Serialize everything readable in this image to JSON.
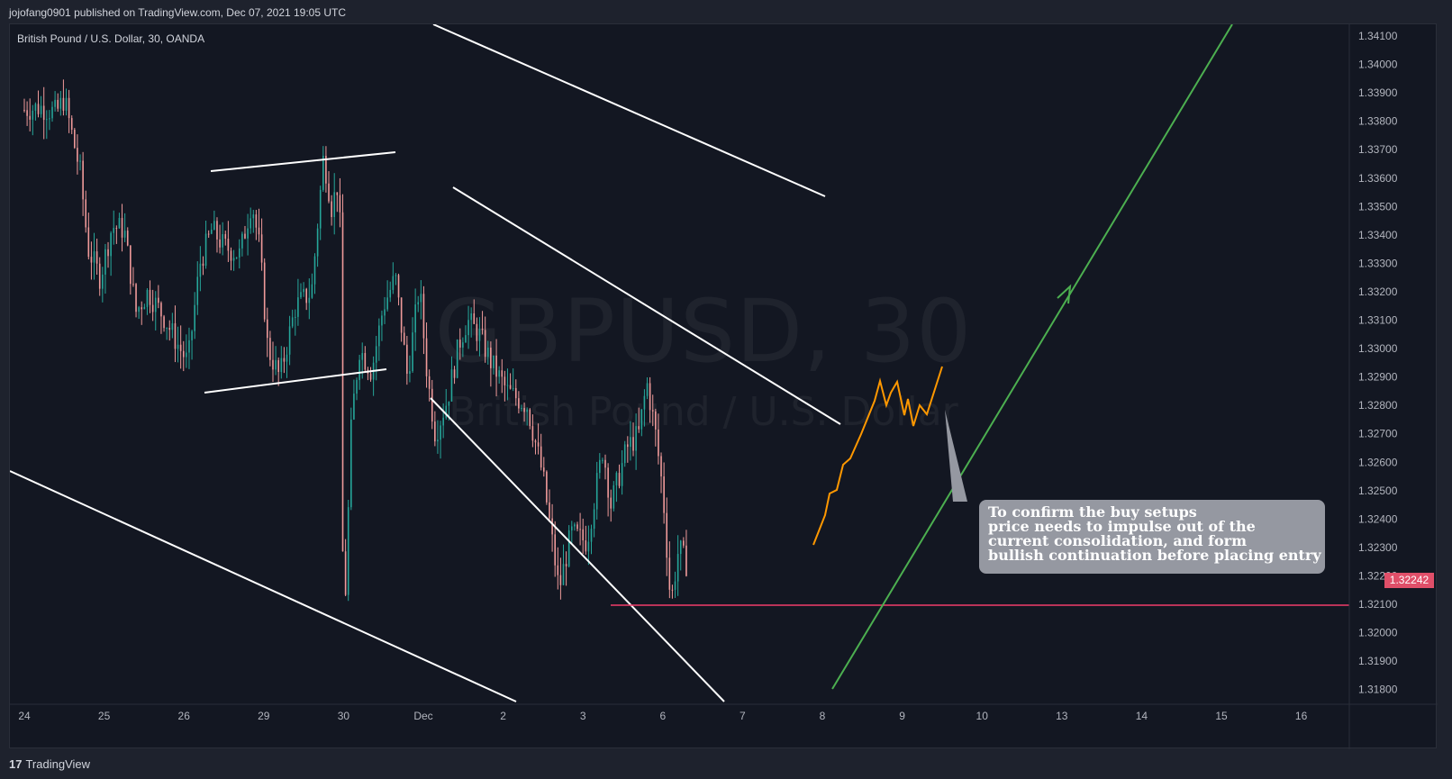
{
  "header": {
    "publisher": "jojofang0901 published on TradingView.com, Dec 07, 2021 19:05 UTC"
  },
  "symbol": {
    "label": "British Pound / U.S. Dollar, 30, OANDA",
    "watermark": "GBPUSD, 30",
    "watermark_desc": "British Pound / U.S. Dollar"
  },
  "note": {
    "lines": [
      "To confirm the buy setups",
      "price needs to impulse out of the",
      "current consolidation, and form",
      "bullish continuation before placing entry"
    ]
  },
  "price_tag": "1.32242",
  "footer": {
    "logo_text": "TradingView",
    "logo_mark": "17"
  },
  "colors": {
    "background": "#131722",
    "bull": "#26a69a",
    "bear": "#ef9a9a",
    "trendline": "#ffffff",
    "support": "#f23d6b",
    "projection": "#ff9800",
    "target_arrow": "#4caf50",
    "price_tag": "#e04f69"
  },
  "chart_data": {
    "type": "candlestick",
    "title": "British Pound / U.S. Dollar, 30, OANDA",
    "x_ticks": [
      "24",
      "25",
      "26",
      "29",
      "30",
      "Dec",
      "2",
      "3",
      "6",
      "7",
      "8",
      "9",
      "10",
      "13",
      "14",
      "15",
      "16"
    ],
    "y_ticks": [
      "1.34100",
      "1.34000",
      "1.33900",
      "1.33800",
      "1.33700",
      "1.33600",
      "1.33500",
      "1.33400",
      "1.33300",
      "1.33200",
      "1.33100",
      "1.33000",
      "1.32900",
      "1.32800",
      "1.32700",
      "1.32600",
      "1.32500",
      "1.32400",
      "1.32300",
      "1.32200",
      "1.32100",
      "1.32000",
      "1.31900",
      "1.31800"
    ],
    "ylim": [
      1.3175,
      1.3413
    ],
    "last_price": 1.32242,
    "support_level": 1.321,
    "price_path": [
      {
        "x": 0.0,
        "y": 1.3384
      },
      {
        "x": 0.2,
        "y": 1.3385
      },
      {
        "x": 0.4,
        "y": 1.3383
      },
      {
        "x": 0.5,
        "y": 1.3388
      },
      {
        "x": 0.7,
        "y": 1.3362
      },
      {
        "x": 0.8,
        "y": 1.3335
      },
      {
        "x": 0.95,
        "y": 1.3325
      },
      {
        "x": 1.1,
        "y": 1.3343
      },
      {
        "x": 1.25,
        "y": 1.3342
      },
      {
        "x": 1.4,
        "y": 1.3313
      },
      {
        "x": 1.55,
        "y": 1.332
      },
      {
        "x": 1.75,
        "y": 1.3311
      },
      {
        "x": 1.95,
        "y": 1.33
      },
      {
        "x": 2.05,
        "y": 1.3295
      },
      {
        "x": 2.2,
        "y": 1.333
      },
      {
        "x": 2.35,
        "y": 1.3342
      },
      {
        "x": 2.5,
        "y": 1.3336
      },
      {
        "x": 2.7,
        "y": 1.3333
      },
      {
        "x": 2.85,
        "y": 1.3352
      },
      {
        "x": 2.95,
        "y": 1.3335
      },
      {
        "x": 3.05,
        "y": 1.33
      },
      {
        "x": 3.2,
        "y": 1.329
      },
      {
        "x": 3.4,
        "y": 1.3315
      },
      {
        "x": 3.6,
        "y": 1.332
      },
      {
        "x": 3.75,
        "y": 1.3368
      },
      {
        "x": 3.85,
        "y": 1.335
      },
      {
        "x": 3.95,
        "y": 1.336
      },
      {
        "x": 4.0,
        "y": 1.3195
      },
      {
        "x": 4.1,
        "y": 1.3275
      },
      {
        "x": 4.2,
        "y": 1.33
      },
      {
        "x": 4.35,
        "y": 1.3292
      },
      {
        "x": 4.5,
        "y": 1.3315
      },
      {
        "x": 4.65,
        "y": 1.3325
      },
      {
        "x": 4.8,
        "y": 1.329
      },
      {
        "x": 4.95,
        "y": 1.3322
      },
      {
        "x": 5.05,
        "y": 1.329
      },
      {
        "x": 5.15,
        "y": 1.327
      },
      {
        "x": 5.3,
        "y": 1.3282
      },
      {
        "x": 5.45,
        "y": 1.3302
      },
      {
        "x": 5.55,
        "y": 1.331
      },
      {
        "x": 5.7,
        "y": 1.3305
      },
      {
        "x": 5.85,
        "y": 1.3295
      },
      {
        "x": 6.05,
        "y": 1.3285
      },
      {
        "x": 6.3,
        "y": 1.328
      },
      {
        "x": 6.5,
        "y": 1.3255
      },
      {
        "x": 6.7,
        "y": 1.3215
      },
      {
        "x": 6.85,
        "y": 1.3235
      },
      {
        "x": 7.05,
        "y": 1.3232
      },
      {
        "x": 7.25,
        "y": 1.3265
      },
      {
        "x": 7.35,
        "y": 1.3245
      },
      {
        "x": 7.55,
        "y": 1.3265
      },
      {
        "x": 7.7,
        "y": 1.327
      },
      {
        "x": 7.8,
        "y": 1.3288
      },
      {
        "x": 7.9,
        "y": 1.3272
      },
      {
        "x": 8.0,
        "y": 1.325
      },
      {
        "x": 8.1,
        "y": 1.321
      },
      {
        "x": 8.2,
        "y": 1.323
      },
      {
        "x": 8.3,
        "y": 1.3224
      }
    ]
  }
}
